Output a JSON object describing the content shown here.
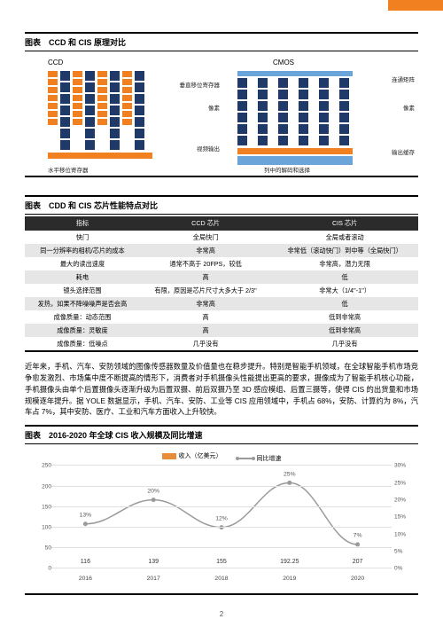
{
  "section1": {
    "title": "图表　CCD 和 CIS 原理对比",
    "ccd": {
      "label": "CCD",
      "annot_vshift": "垂直移位寄存器",
      "annot_pixel": "像素",
      "annot_output": "视频输出",
      "annot_hreg": "水平移位寄存器"
    },
    "cmos": {
      "label": "CMOS",
      "annot_matrix": "连通矩阵",
      "annot_pixel": "像素",
      "annot_buffer": "输出缓存",
      "annot_decode": "列中的解码和选择"
    },
    "colors": {
      "pixel": "#1f3a68",
      "register": "#f08020",
      "buffer": "#6aa4d8"
    }
  },
  "section2": {
    "title": "图表　CDD 和 CIS 芯片性能特点对比",
    "columns": [
      "指标",
      "CCD 芯片",
      "CIS 芯片"
    ],
    "rows": [
      [
        "快门",
        "全局快门",
        "全局或者滚动"
      ],
      [
        "同一分辨率的相机/芯片的成本",
        "非常高",
        "非常低（滚动快门）到中等（全局快门）"
      ],
      [
        "最大的读出速度",
        "通常不高于 20FPS，较低",
        "非常高，潜力无限"
      ],
      [
        "耗电",
        "高",
        "低"
      ],
      [
        "镜头选择范围",
        "有限，原因是芯片尺寸大多大于 2/3''",
        "非常大（1/4''-1''）"
      ],
      [
        "发热，如果不降噪噪声是否会高",
        "非常高",
        "低"
      ],
      [
        "成像质量：动态范围",
        "高",
        "低到非常高"
      ],
      [
        "成像质量：灵敏度",
        "高",
        "低到非常高"
      ],
      [
        "成像质量：低噪点",
        "几乎没有",
        "几乎没有"
      ]
    ]
  },
  "paragraph": "近年来，手机、汽车、安防领域的图像传感器数量及价值量也在稳步提升。特别是智能手机领域，在全球智能手机市场竞争愈发激烈、市场集中度不断提高的情形下，消费者对手机摄像头性能提出更高的要求，摄像成为了智能手机核心功能，手机摄像头由单个后置摄像头逐渐升级为后置双摄、前后双摄乃至 3D 感应模组、后置三摄等，使得 CIS 的出货量和市场规模逐年提升。据 YOLE 数据显示，手机、汽车、安防、工业等 CIS 应用领域中，手机占 68%，安防、计算约为 8%，汽车占 7%，其中安防、医疗、工业和汽车方面收入上升较快。",
  "section3": {
    "title": "图表　2016-2020 年全球 CIS 收入规模及同比增速",
    "legend_bar": "收入（亿美元）",
    "legend_line": "同比增速",
    "bar_color": "#e88c3a",
    "line_color": "#9a9a9a",
    "grid_color": "#e0e0e0",
    "y_left": {
      "max": 250,
      "step": 50
    },
    "y_right": {
      "max": 30,
      "step": 5,
      "suffix": "%"
    },
    "categories": [
      "2016",
      "2017",
      "2018",
      "2019",
      "2020"
    ],
    "values": [
      116,
      139,
      155,
      192.25,
      207
    ],
    "value_labels": [
      "116",
      "139",
      "155",
      "192.25",
      "207"
    ],
    "growth_pct": [
      13,
      20,
      12,
      25,
      7
    ],
    "growth_labels": [
      "13%",
      "20%",
      "12%",
      "25%",
      "7%"
    ]
  },
  "page_number": "2"
}
